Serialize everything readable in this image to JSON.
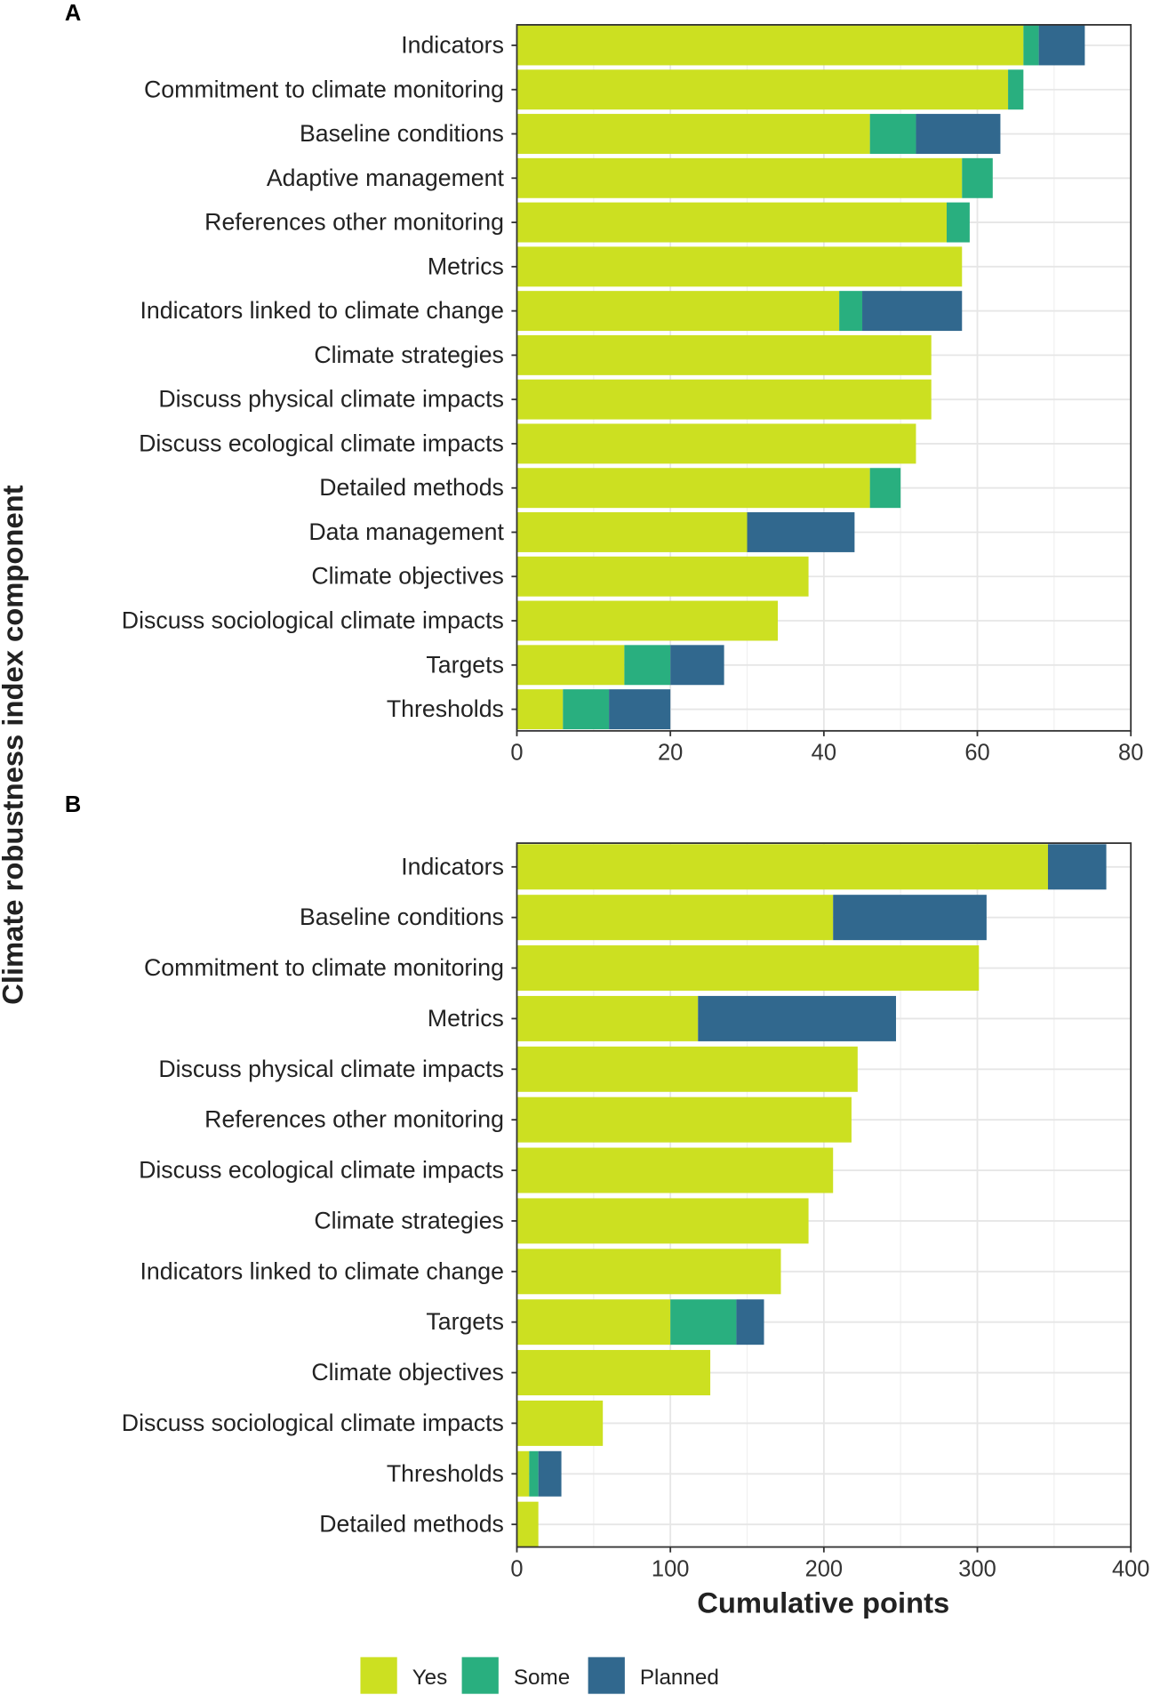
{
  "chart_data": [
    {
      "type": "bar",
      "orientation": "horizontal",
      "stacked": true,
      "panel": "A",
      "categories": [
        "Indicators",
        "Commitment to climate monitoring",
        "Baseline conditions",
        "Adaptive management",
        "References other monitoring",
        "Metrics",
        "Indicators linked to climate change",
        "Climate strategies",
        "Discuss physical climate impacts",
        "Discuss ecological climate impacts",
        "Detailed methods",
        "Data management",
        "Climate objectives",
        "Discuss sociological climate impacts",
        "Targets",
        "Thresholds"
      ],
      "series": [
        {
          "name": "Yes",
          "values": [
            66,
            64,
            46,
            58,
            56,
            58,
            42,
            54,
            54,
            52,
            46,
            30,
            38,
            34,
            14,
            6
          ]
        },
        {
          "name": "Some",
          "values": [
            2,
            2,
            6,
            4,
            3,
            0,
            3,
            0,
            0,
            0,
            4,
            0,
            0,
            0,
            6,
            6
          ]
        },
        {
          "name": "Planned",
          "values": [
            6,
            0,
            11,
            0,
            0,
            0,
            13,
            0,
            0,
            0,
            0,
            14,
            0,
            0,
            7,
            8
          ]
        }
      ],
      "xlim": [
        0,
        80
      ],
      "xticks": [
        "0",
        "20",
        "40",
        "60",
        "80"
      ],
      "xticks_values": [
        0,
        20,
        40,
        60,
        80
      ],
      "grid": true
    },
    {
      "type": "bar",
      "orientation": "horizontal",
      "stacked": true,
      "panel": "B",
      "categories": [
        "Indicators",
        "Baseline conditions",
        "Commitment to climate monitoring",
        "Metrics",
        "Discuss physical climate impacts",
        "References other monitoring",
        "Discuss ecological climate impacts",
        "Climate strategies",
        "Indicators linked to climate change",
        "Targets",
        "Climate objectives",
        "Discuss sociological climate impacts",
        "Thresholds",
        "Detailed methods"
      ],
      "series": [
        {
          "name": "Yes",
          "values": [
            346,
            206,
            301,
            118,
            222,
            218,
            206,
            190,
            172,
            100,
            126,
            56,
            8,
            14
          ]
        },
        {
          "name": "Some",
          "values": [
            0,
            0,
            0,
            0,
            0,
            0,
            0,
            0,
            0,
            43,
            0,
            0,
            6,
            0
          ]
        },
        {
          "name": "Planned",
          "values": [
            38,
            100,
            0,
            129,
            0,
            0,
            0,
            0,
            0,
            18,
            0,
            0,
            15,
            0
          ]
        }
      ],
      "xlim": [
        0,
        400
      ],
      "xticks": [
        "0",
        "100",
        "200",
        "300",
        "400"
      ],
      "xticks_values": [
        0,
        100,
        200,
        300,
        400
      ],
      "grid": true
    }
  ],
  "ylabel": "Climate robustness index component",
  "xlabel": "Cumulative points",
  "legend": {
    "position": "bottom",
    "items": [
      {
        "label": "Yes",
        "color": "#CCE021"
      },
      {
        "label": "Some",
        "color": "#29AF7F"
      },
      {
        "label": "Planned",
        "color": "#31688E"
      }
    ]
  }
}
